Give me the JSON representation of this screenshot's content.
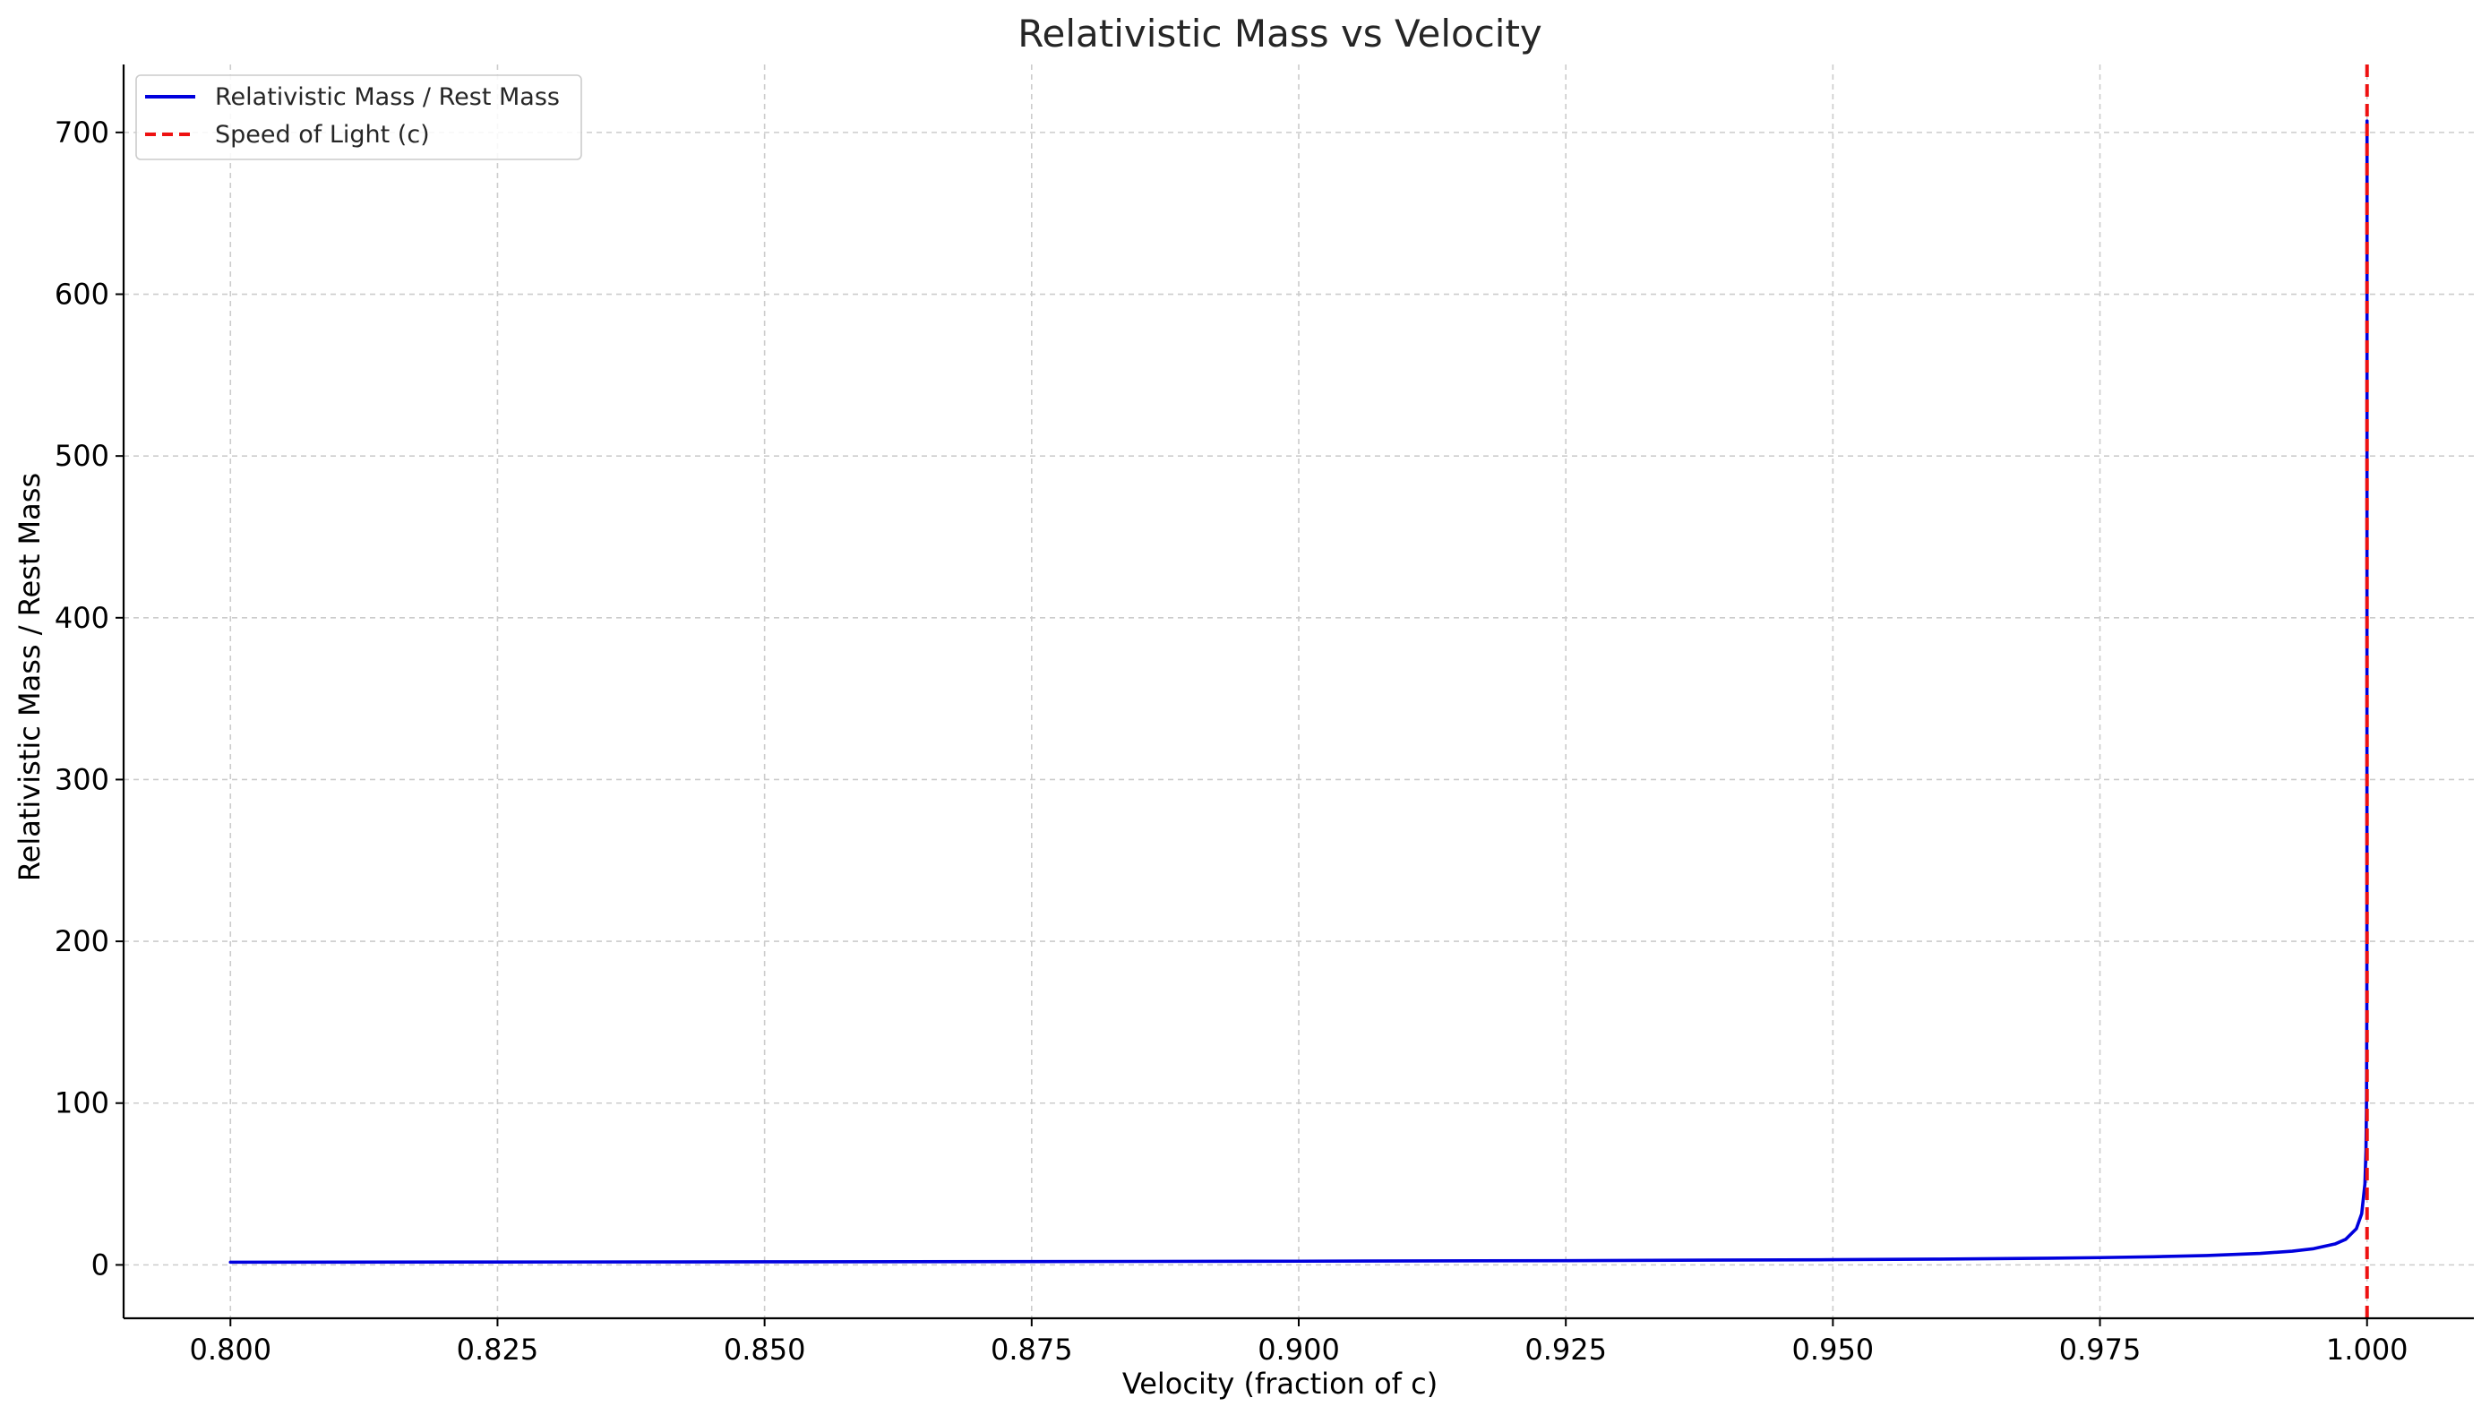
{
  "chart_data": {
    "type": "line",
    "title": "Relativistic Mass vs Velocity",
    "xlabel": "Velocity (fraction of c)",
    "ylabel": "Relativistic Mass / Rest Mass",
    "xlim": [
      0.79,
      1.01
    ],
    "ylim": [
      -33,
      742
    ],
    "xticks": [
      0.8,
      0.825,
      0.85,
      0.875,
      0.9,
      0.925,
      0.95,
      0.975,
      1.0
    ],
    "xtick_labels": [
      "0.800",
      "0.825",
      "0.850",
      "0.875",
      "0.900",
      "0.925",
      "0.950",
      "0.975",
      "1.000"
    ],
    "yticks": [
      0,
      100,
      200,
      300,
      400,
      500,
      600,
      700
    ],
    "ytick_labels": [
      "0",
      "100",
      "200",
      "300",
      "400",
      "500",
      "600",
      "700"
    ],
    "grid": true,
    "legend_position": "top-left",
    "series": [
      {
        "name": "Relativistic Mass / Rest Mass",
        "color": "#0000dd",
        "style": "solid",
        "x": [
          0.8,
          0.825,
          0.85,
          0.875,
          0.9,
          0.925,
          0.95,
          0.96,
          0.97,
          0.975,
          0.98,
          0.985,
          0.99,
          0.993,
          0.995,
          0.997,
          0.998,
          0.999,
          0.9995,
          0.9998,
          0.9999,
          0.99995,
          0.99998,
          0.99999,
          0.999999
        ],
        "y": [
          1.667,
          1.77,
          1.898,
          2.065,
          2.294,
          2.63,
          3.203,
          3.571,
          4.113,
          4.5,
          5.025,
          5.795,
          7.089,
          8.476,
          10.013,
          12.925,
          15.819,
          22.366,
          31.627,
          50.0,
          70.712,
          100.0,
          158.1,
          223.6,
          707.1
        ]
      },
      {
        "name": "Speed of Light (c)",
        "color": "#ee1111",
        "style": "dashed",
        "vline_x": 1.0
      }
    ]
  }
}
